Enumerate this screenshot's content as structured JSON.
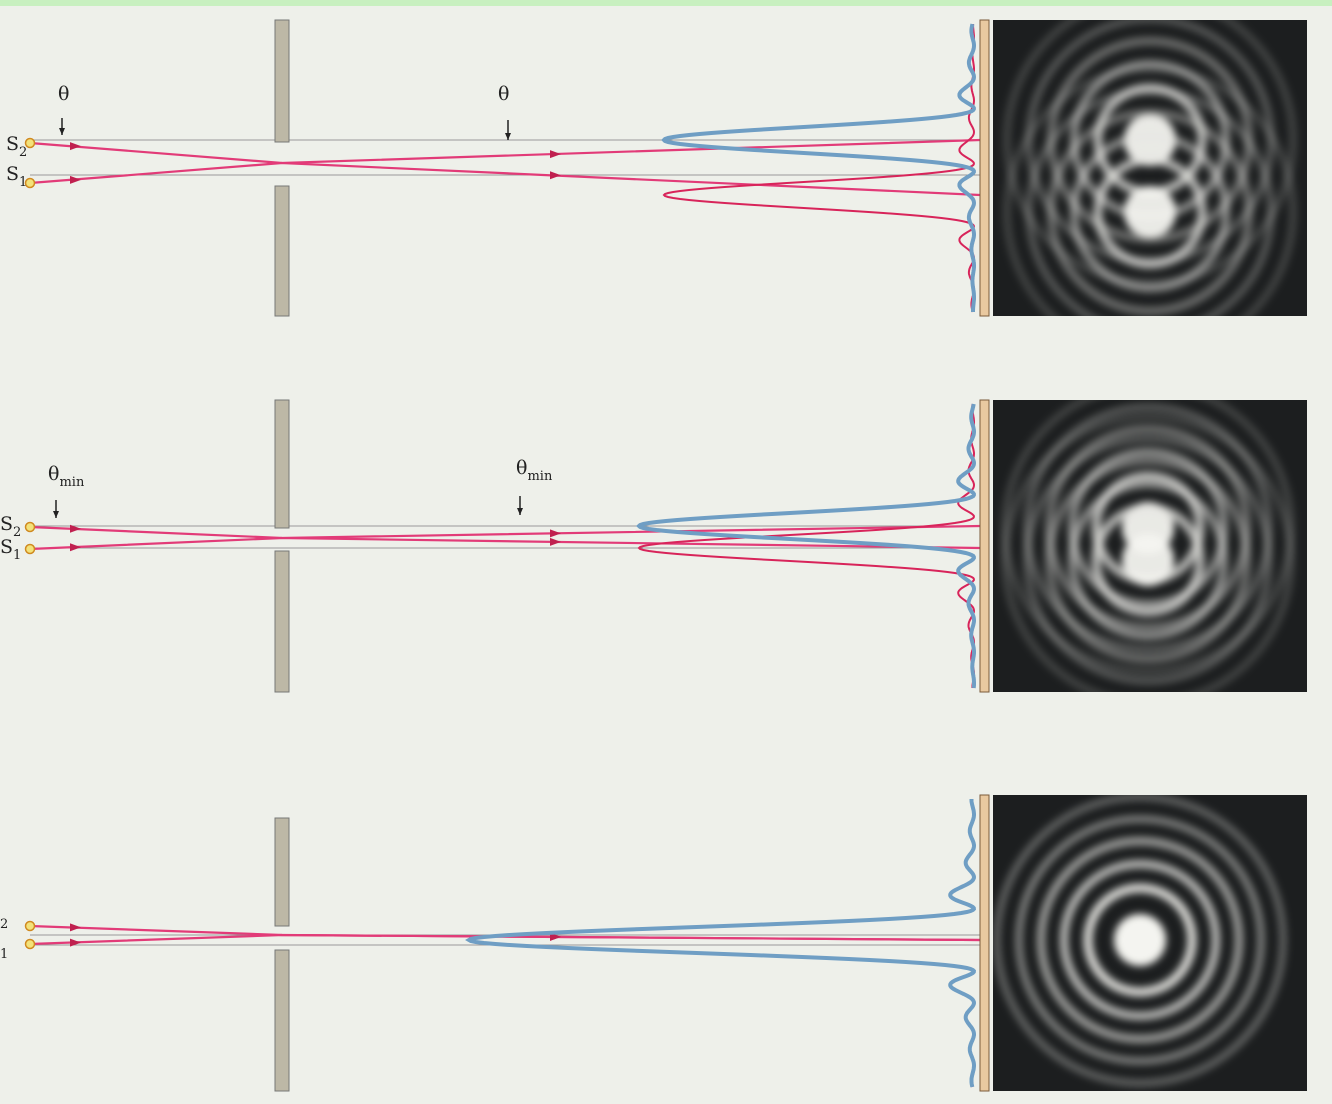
{
  "panels": [
    {
      "angle_labels": [
        {
          "main": "θ"
        },
        {
          "main": "θ"
        }
      ],
      "sources": [
        {
          "main": "S",
          "sub": "2"
        },
        {
          "main": "S",
          "sub": "1"
        }
      ]
    },
    {
      "angle_labels": [
        {
          "main": "θ",
          "sub": "min"
        },
        {
          "main": "θ",
          "sub": "min"
        }
      ],
      "sources": [
        {
          "main": "S",
          "sub": "2"
        },
        {
          "main": "S",
          "sub": "1"
        }
      ]
    },
    {
      "sources": [
        {
          "sub": "2"
        },
        {
          "sub": "1"
        }
      ]
    }
  ]
}
